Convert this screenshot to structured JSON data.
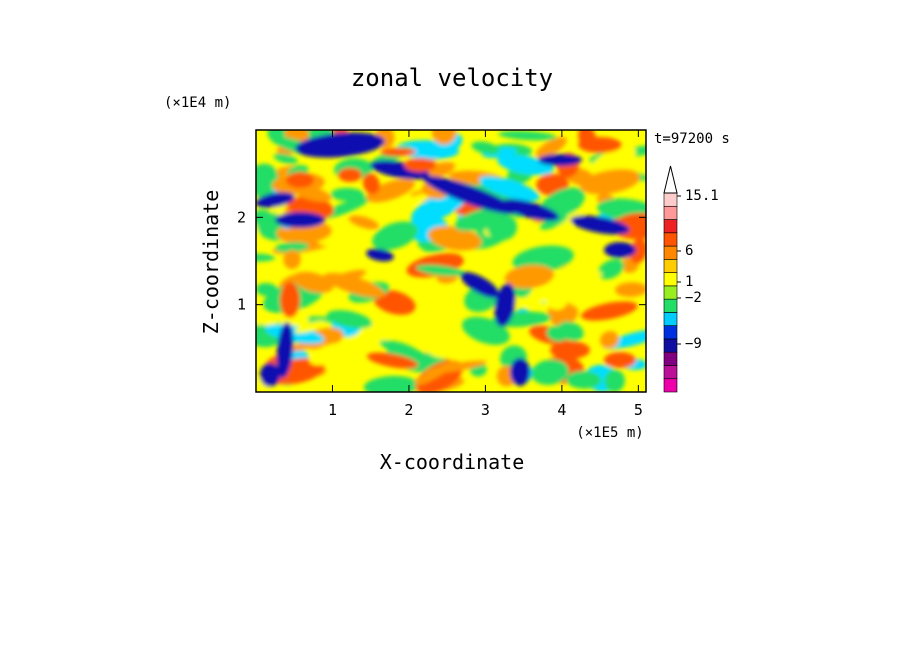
{
  "chart_data": {
    "type": "heatmap",
    "title": "zonal velocity",
    "xlabel": "X-coordinate",
    "ylabel": "Z-coordinate",
    "x_unit": "(×1E5 m)",
    "y_unit": "(×1E4 m)",
    "time_label": "t=97200 s",
    "xlim": [
      0,
      5.1
    ],
    "ylim": [
      0,
      3.0
    ],
    "x_ticks": [
      1,
      2,
      3,
      4,
      5
    ],
    "y_ticks": [
      1,
      2
    ],
    "colorbar": {
      "labels": [
        "15.1",
        "6",
        "1",
        "−2",
        "−9"
      ],
      "label_values": [
        15.1,
        6,
        1,
        -2,
        -9
      ],
      "bands": [
        {
          "color": "#ee00aa"
        },
        {
          "color": "#bb1199"
        },
        {
          "color": "#800080"
        },
        {
          "color": "#1010a0"
        },
        {
          "color": "#0030e0"
        },
        {
          "color": "#00ccff"
        },
        {
          "color": "#22dd66"
        },
        {
          "color": "#99ee22"
        },
        {
          "color": "#ffff00"
        },
        {
          "color": "#ffcc00"
        },
        {
          "color": "#ff8800"
        },
        {
          "color": "#ff5500"
        },
        {
          "color": "#ee2222"
        },
        {
          "color": "#ff9999"
        },
        {
          "color": "#ffcccc"
        }
      ],
      "extend_max": true
    },
    "field_colors": {
      "dark_blue": "#0a0ab0",
      "cyan": "#00ddff",
      "green": "#22dd66",
      "yellow": "#ffff00",
      "orange": "#ff9900",
      "red_orange": "#ff5500"
    }
  }
}
